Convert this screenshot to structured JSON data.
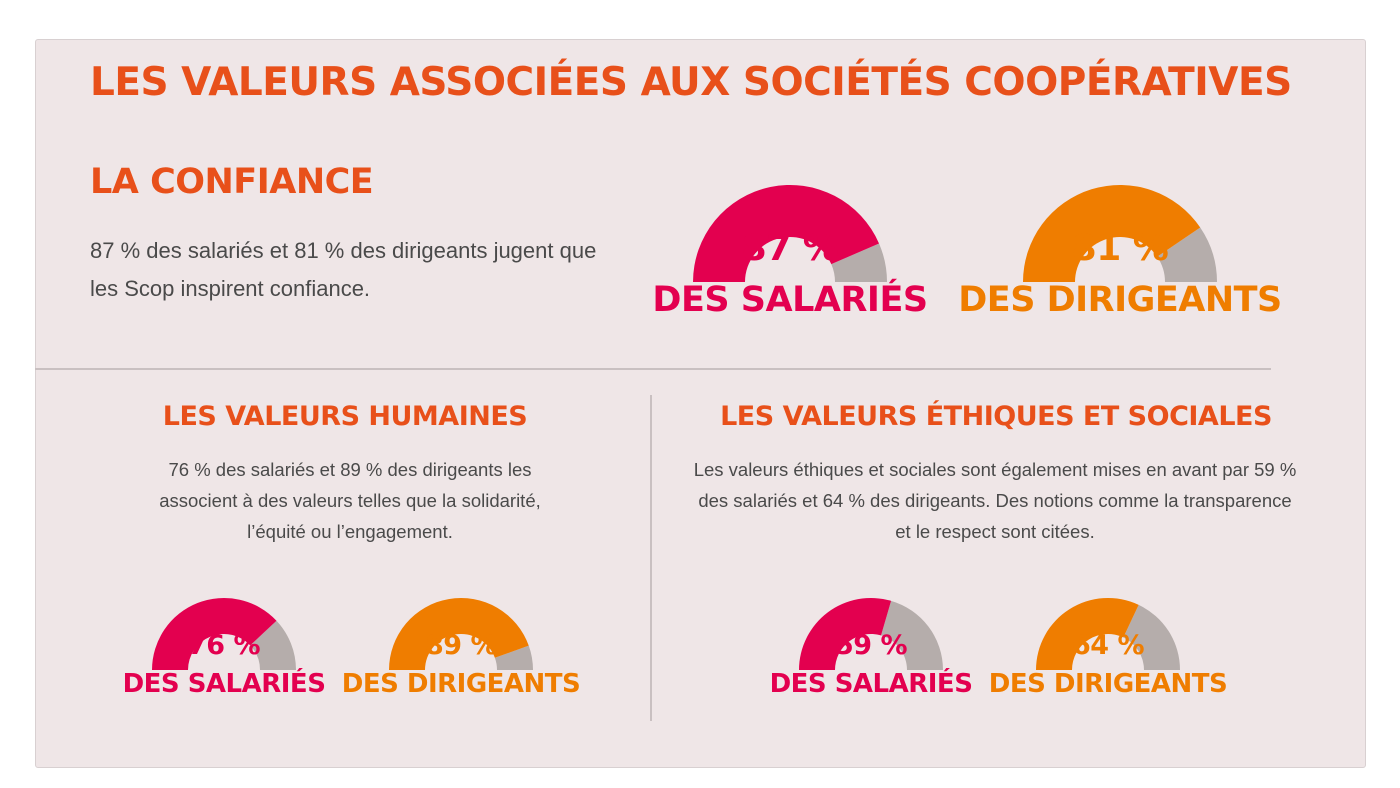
{
  "colors": {
    "title": "#e8501a",
    "salaries": "#e3004f",
    "dirigeants": "#ef7d00",
    "remainder": "#b5adab"
  },
  "title": "LES VALEURS ASSOCIÉES AUX SOCIÉTÉS COOPÉRATIVES",
  "confiance": {
    "title": "LA CONFIANCE",
    "text": "87 % des salariés et 81 % des dirigeants jugent que les Scop inspirent confiance."
  },
  "humaines": {
    "title": "LES VALEURS HUMAINES",
    "text": "76 % des salariés et 89 % des dirigeants les associent à des valeurs telles que la solidarité, l’équité ou l’engagement."
  },
  "ethiques": {
    "title": "LES VALEURS ÉTHIQUES ET SOCIALES",
    "text": "Les valeurs éthiques et sociales sont également mises en avant par 59 % des salariés et 64 % des dirigeants. Des notions comme la transparence et le respect sont citées."
  },
  "chart_data": [
    {
      "type": "pie",
      "section": "La confiance",
      "series": [
        {
          "name": "DES SALARIÉS",
          "value": 87,
          "value_label": "87 %",
          "color": "#e3004f"
        },
        {
          "name": "DES DIRIGEANTS",
          "value": 81,
          "value_label": "81 %",
          "color": "#ef7d00"
        }
      ]
    },
    {
      "type": "pie",
      "section": "Les valeurs humaines",
      "series": [
        {
          "name": "DES SALARIÉS",
          "value": 76,
          "value_label": "76 %",
          "color": "#e3004f"
        },
        {
          "name": "DES DIRIGEANTS",
          "value": 89,
          "value_label": "89 %",
          "color": "#ef7d00"
        }
      ]
    },
    {
      "type": "pie",
      "section": "Les valeurs éthiques et sociales",
      "series": [
        {
          "name": "DES SALARIÉS",
          "value": 59,
          "value_label": "59 %",
          "color": "#e3004f"
        },
        {
          "name": "DES DIRIGEANTS",
          "value": 64,
          "value_label": "64 %",
          "color": "#ef7d00"
        }
      ]
    }
  ]
}
